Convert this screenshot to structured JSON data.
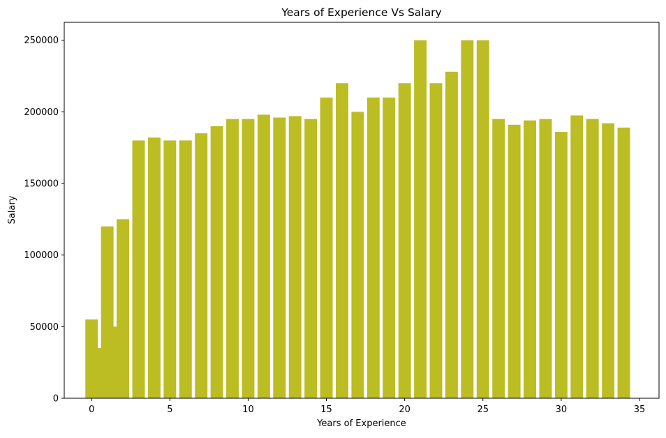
{
  "chart_data": {
    "type": "bar",
    "title": "Years of Experience Vs Salary",
    "xlabel": "Years of Experience",
    "ylabel": "Salary",
    "xlim": [
      -1.75,
      36.25
    ],
    "ylim": [
      0,
      262500
    ],
    "bar_color": "#bcbd22",
    "bar_width": 0.8,
    "x_ticks": [
      0,
      5,
      10,
      15,
      20,
      25,
      30,
      35
    ],
    "x_tick_labels": [
      "0",
      "5",
      "10",
      "15",
      "20",
      "25",
      "30",
      "35"
    ],
    "y_ticks": [
      0,
      50000,
      100000,
      150000,
      200000,
      250000
    ],
    "y_tick_labels": [
      "0",
      "50000",
      "100000",
      "150000",
      "200000",
      "250000"
    ],
    "grid": false,
    "legend": "none",
    "x": [
      0,
      0.5,
      1,
      1.5,
      2,
      3,
      4,
      5,
      6,
      7,
      8,
      9,
      10,
      11,
      12,
      13,
      14,
      15,
      16,
      17,
      18,
      19,
      20,
      21,
      22,
      23,
      24,
      25,
      26,
      27,
      28,
      29,
      30,
      31,
      32,
      33,
      34
    ],
    "values": [
      55000,
      35000,
      120000,
      50000,
      125000,
      180000,
      182000,
      180000,
      180000,
      185000,
      190000,
      195000,
      195000,
      198000,
      196000,
      197000,
      195000,
      210000,
      220000,
      200000,
      210000,
      210000,
      220000,
      250000,
      220000,
      228000,
      250000,
      250000,
      195000,
      191000,
      194000,
      195000,
      186000,
      197500,
      195000,
      192000,
      189000
    ]
  }
}
